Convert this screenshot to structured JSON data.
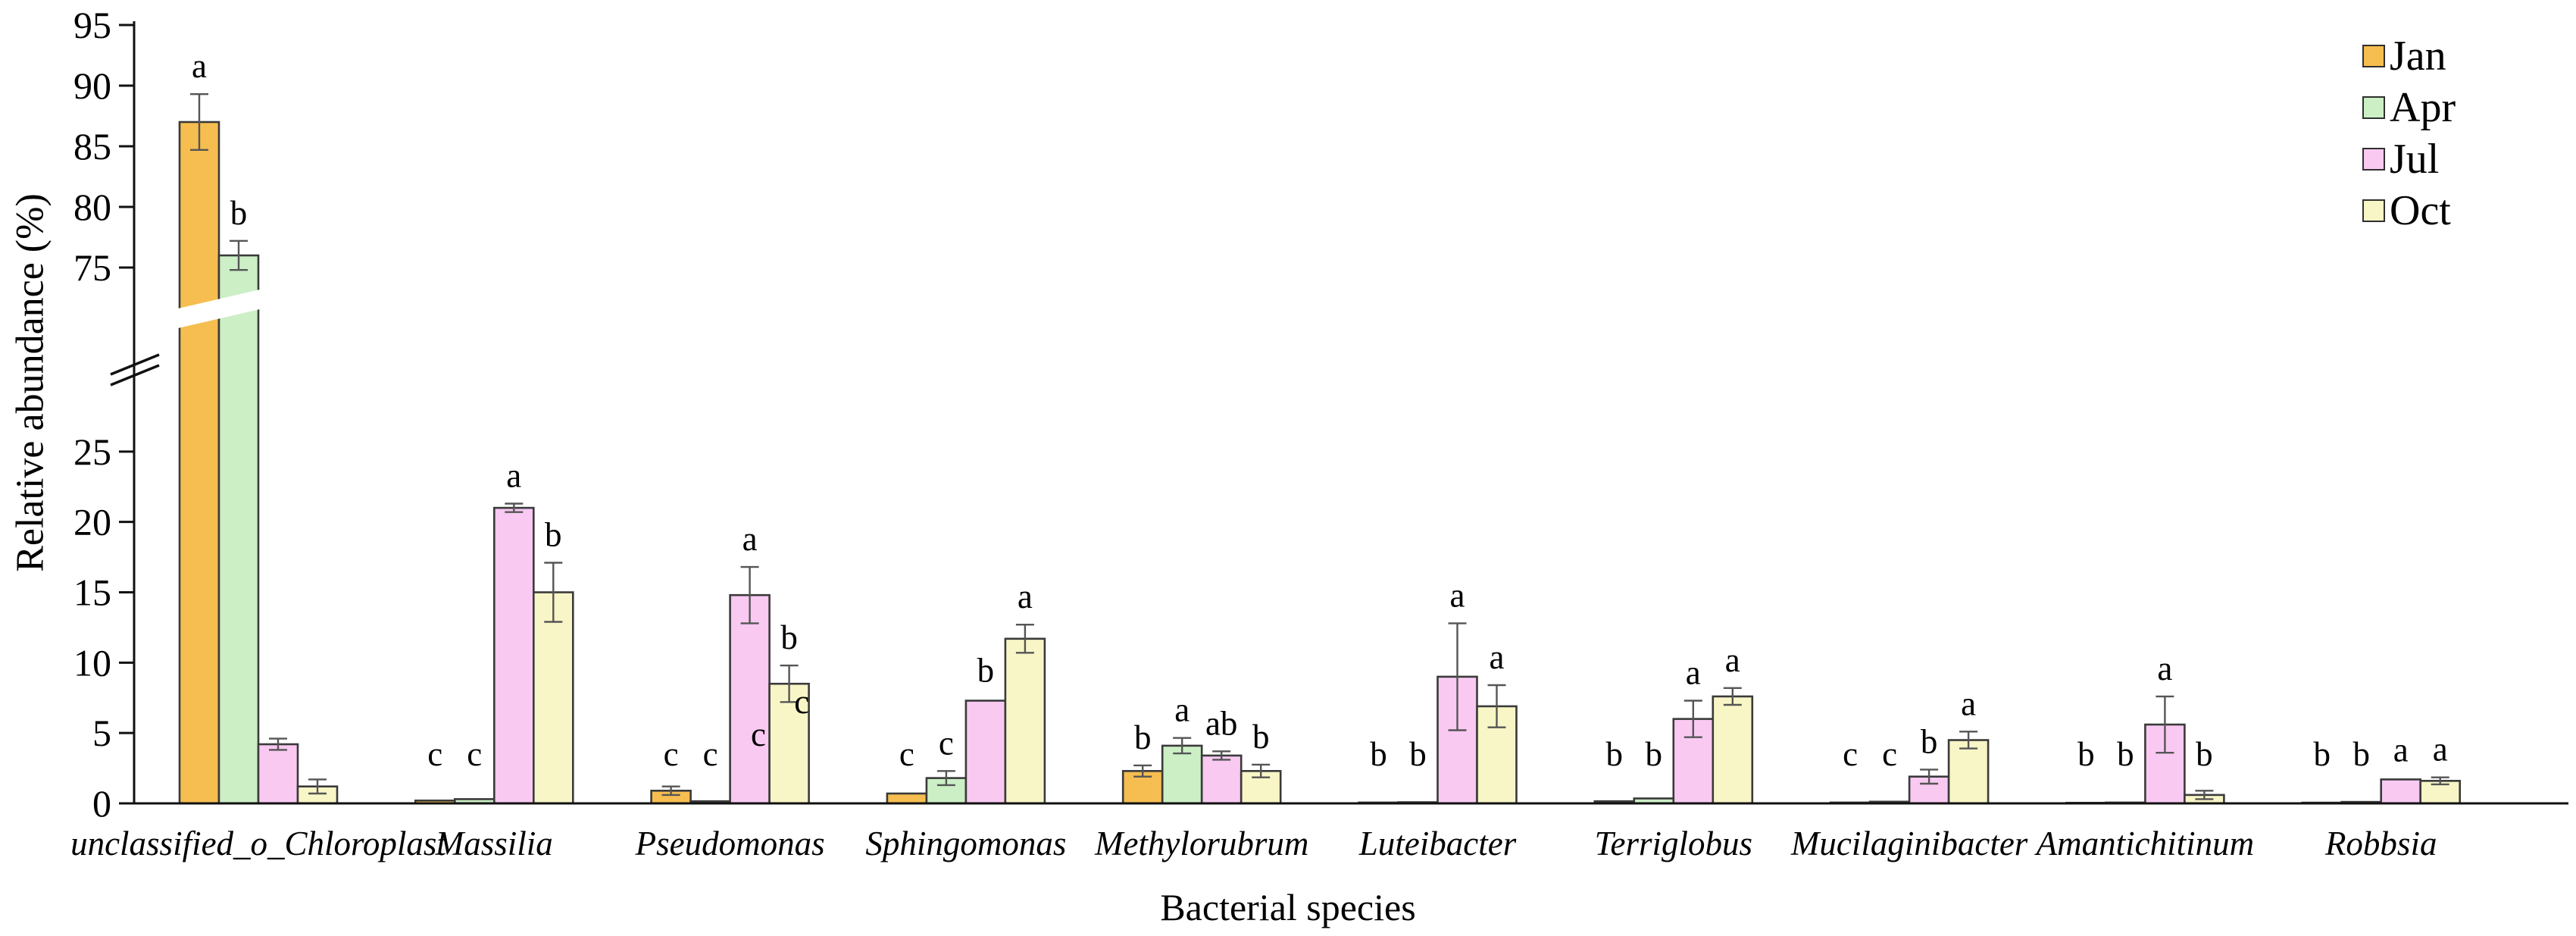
{
  "chart_data": {
    "type": "bar",
    "title": "",
    "xlabel": "Bacterial species",
    "ylabel": "Relative abundance (%)",
    "grid": false,
    "legend_position": "top-right",
    "y_axis": {
      "unit": "%",
      "lower_ticks": [
        0,
        5,
        10,
        15,
        20,
        25
      ],
      "upper_ticks": [
        75,
        80,
        85,
        90,
        95
      ],
      "break_between": [
        29,
        69
      ]
    },
    "categories": [
      "unclassified_o_Chloroplast",
      "Massilia",
      "Pseudomonas",
      "Sphingomonas",
      "Methylorubrum",
      "Luteibacter",
      "Terriglobus",
      "Mucilaginibacter",
      "Amantichitinum",
      "Robbsia"
    ],
    "series": [
      {
        "name": "Jan",
        "color": "#F6BE50",
        "values": [
          87,
          0.2,
          0.9,
          0.7,
          2.3,
          0.06,
          0.15,
          0.06,
          0.04,
          0.05
        ],
        "errors": [
          2.3,
          0.1,
          0.3,
          0.12,
          0.4,
          0.03,
          0.06,
          0.04,
          0.02,
          0.03
        ],
        "letters": [
          "a",
          "c",
          "c",
          "c",
          "b",
          "b",
          "b",
          "c",
          "b",
          "b"
        ]
      },
      {
        "name": "Apr",
        "color": "#CCEFC6",
        "values": [
          76,
          0.3,
          0.15,
          1.8,
          4.1,
          0.08,
          0.35,
          0.12,
          0.06,
          0.1
        ],
        "errors": [
          1.2,
          0.12,
          0.06,
          0.5,
          0.55,
          0.04,
          0.12,
          0.05,
          0.03,
          0.05
        ],
        "letters": [
          "b",
          "c",
          "c",
          "c",
          "a",
          "b",
          "b",
          "c",
          "b",
          "b"
        ]
      },
      {
        "name": "Jul",
        "color": "#F9C9F2",
        "values": [
          4.2,
          21,
          14.8,
          7.3,
          3.4,
          9.0,
          6.0,
          1.9,
          5.6,
          1.7
        ],
        "errors": [
          0.4,
          0.3,
          2.0,
          0.15,
          0.3,
          3.8,
          1.3,
          0.5,
          2.0,
          0.1
        ],
        "letters": [
          "",
          "a",
          "a",
          "b",
          "ab",
          "a",
          "a",
          "b",
          "a",
          "a"
        ]
      },
      {
        "name": "Oct",
        "color": "#F8F6C6",
        "values": [
          1.2,
          15,
          8.5,
          11.7,
          2.3,
          6.9,
          7.6,
          4.5,
          0.6,
          1.6
        ],
        "errors": [
          0.5,
          2.1,
          1.3,
          1.0,
          0.45,
          1.5,
          0.6,
          0.6,
          0.3,
          0.25
        ],
        "letters": [
          "",
          "b",
          "b",
          "a",
          "b",
          "a",
          "a",
          "a",
          "b",
          "a"
        ]
      }
    ],
    "extra_letters": [
      {
        "text": "c",
        "category_index": 2,
        "bar_pos": 2.72,
        "value": 4.1
      },
      {
        "text": "c",
        "category_index": 2,
        "bar_pos": 3.82,
        "value": 6.4
      }
    ]
  }
}
